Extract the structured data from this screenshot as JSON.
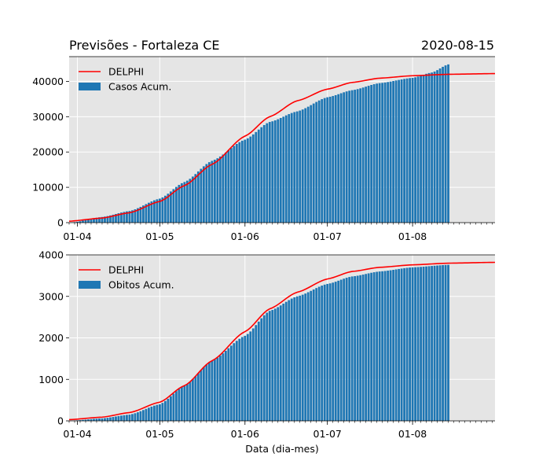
{
  "figure": {
    "title_left": "Previsões - Fortaleza CE",
    "title_right": "2020-08-15",
    "xlabel": "Data (dia-mes)"
  },
  "colors": {
    "background": "#e5e5e5",
    "bars": "#1f77b4",
    "line": "#ff0000",
    "grid": "#ffffff"
  },
  "chart_data": [
    {
      "type": "bar",
      "x_range": [
        "2020-03-29",
        "2020-08-31"
      ],
      "x_ticks": [
        "01-04",
        "01-05",
        "01-06",
        "01-07",
        "01-08"
      ],
      "ylim": [
        0,
        47000
      ],
      "y_ticks": [
        0,
        10000,
        20000,
        30000,
        40000
      ],
      "grid": true,
      "legend_position": "top-left",
      "bars": {
        "name": "Casos Acum.",
        "date_range": [
          "2020-03-30",
          "2020-08-14"
        ],
        "checkpoints": [
          [
            "2020-03-30",
            50
          ],
          [
            "2020-04-10",
            1600
          ],
          [
            "2020-04-20",
            3300
          ],
          [
            "2020-05-01",
            6800
          ],
          [
            "2020-05-10",
            11500
          ],
          [
            "2020-05-20",
            17500
          ],
          [
            "2020-06-01",
            23500
          ],
          [
            "2020-06-10",
            28500
          ],
          [
            "2020-06-20",
            31500
          ],
          [
            "2020-07-01",
            35500
          ],
          [
            "2020-07-10",
            37500
          ],
          [
            "2020-07-20",
            39500
          ],
          [
            "2020-08-01",
            41000
          ],
          [
            "2020-08-08",
            42500
          ],
          [
            "2020-08-14",
            44800
          ]
        ]
      },
      "line": {
        "name": "DELPHI",
        "date_range": [
          "2020-03-29",
          "2020-08-31"
        ],
        "checkpoints": [
          [
            "2020-03-29",
            400
          ],
          [
            "2020-04-10",
            1300
          ],
          [
            "2020-04-20",
            2800
          ],
          [
            "2020-05-01",
            6000
          ],
          [
            "2020-05-10",
            10500
          ],
          [
            "2020-05-20",
            16500
          ],
          [
            "2020-06-01",
            24500
          ],
          [
            "2020-06-10",
            30000
          ],
          [
            "2020-06-20",
            34500
          ],
          [
            "2020-07-01",
            37800
          ],
          [
            "2020-07-10",
            39700
          ],
          [
            "2020-07-20",
            40900
          ],
          [
            "2020-08-01",
            41600
          ],
          [
            "2020-08-14",
            42000
          ],
          [
            "2020-08-31",
            42200
          ]
        ]
      }
    },
    {
      "type": "bar",
      "x_range": [
        "2020-03-29",
        "2020-08-31"
      ],
      "x_ticks": [
        "01-04",
        "01-05",
        "01-06",
        "01-07",
        "01-08"
      ],
      "ylim": [
        0,
        4000
      ],
      "y_ticks": [
        0,
        1000,
        2000,
        3000,
        4000
      ],
      "grid": true,
      "legend_position": "top-left",
      "bars": {
        "name": "Obitos Acum.",
        "date_range": [
          "2020-03-30",
          "2020-08-14"
        ],
        "checkpoints": [
          [
            "2020-03-30",
            5
          ],
          [
            "2020-04-10",
            60
          ],
          [
            "2020-04-20",
            150
          ],
          [
            "2020-05-01",
            400
          ],
          [
            "2020-05-10",
            850
          ],
          [
            "2020-05-20",
            1450
          ],
          [
            "2020-06-01",
            2050
          ],
          [
            "2020-06-10",
            2650
          ],
          [
            "2020-06-20",
            3000
          ],
          [
            "2020-07-01",
            3300
          ],
          [
            "2020-07-10",
            3480
          ],
          [
            "2020-07-20",
            3600
          ],
          [
            "2020-08-01",
            3700
          ],
          [
            "2020-08-14",
            3760
          ]
        ]
      },
      "line": {
        "name": "DELPHI",
        "date_range": [
          "2020-03-29",
          "2020-08-31"
        ],
        "checkpoints": [
          [
            "2020-03-29",
            30
          ],
          [
            "2020-04-10",
            90
          ],
          [
            "2020-04-20",
            200
          ],
          [
            "2020-05-01",
            450
          ],
          [
            "2020-05-10",
            850
          ],
          [
            "2020-05-20",
            1450
          ],
          [
            "2020-06-01",
            2150
          ],
          [
            "2020-06-10",
            2700
          ],
          [
            "2020-06-20",
            3100
          ],
          [
            "2020-07-01",
            3420
          ],
          [
            "2020-07-10",
            3600
          ],
          [
            "2020-07-20",
            3700
          ],
          [
            "2020-08-01",
            3760
          ],
          [
            "2020-08-14",
            3800
          ],
          [
            "2020-08-31",
            3820
          ]
        ]
      }
    }
  ]
}
